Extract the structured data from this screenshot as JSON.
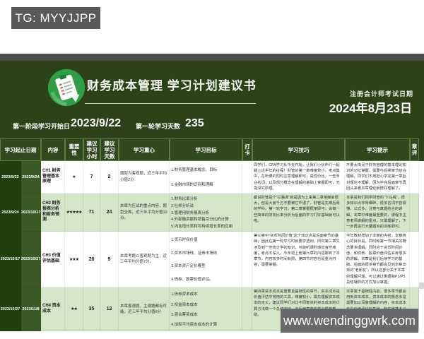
{
  "colors": {
    "page_green": "#2c4319",
    "header_cell_green": "#31491f",
    "date_col_dark": "#22400f",
    "date_col_mid": "#3c5a27",
    "row_alt_green": "#d3e6c8",
    "logo_green": "#2f9e45",
    "top_bar_gray": "#4d4d4d",
    "watermark_gray": "#69696b"
  },
  "overlays": {
    "tg_label": "TG: MYYJJPP",
    "site_label": "www.wendinggwrk.com"
  },
  "header": {
    "icon": "clipboard-icon",
    "title": "财务成本管理 学习计划建议书",
    "exam_label": "注册会计师考试日期",
    "exam_date": "2024年8月23日"
  },
  "subheader": {
    "start_label": "第一阶段学习开始日",
    "start_value": "2023/9/22",
    "days_label": "第一轮学习天数",
    "days_value": "235"
  },
  "table": {
    "headers": {
      "dates": "学习起止日期",
      "content": "内容",
      "importance": "重要性",
      "hours": "建议学习小时",
      "days": "建议学习天数",
      "focus": "学习重心",
      "goals": "学习目标",
      "check": "打卡",
      "skills": "学习技巧",
      "tips": "学习提示",
      "review": "章评"
    },
    "rows": [
      {
        "start": "2023/9/22",
        "end": "2023/9/24",
        "content": "CH1 财务管理基本原理",
        "stars": "★",
        "hours": "7",
        "days": "2",
        "focus": "题型为客观题，近三年平均分值2分",
        "goals": [
          "1.财务管理基本概念、目标",
          "2.金融市场的识别和理解"
        ],
        "check": "",
        "skills": "同学们，CPA学习从今天开始，让我们小伙伴们一起踏上这半年的征程！财管的第一章难度较小，考点集中，在听课的同时注意理解即可，高性价比。一些专业名词，以及部分概念在理解的基础上掌握即可，无需深究原理。",
        "tips": "不要太拘泥于财务管理的基本理论知识的记忆掌握，需要与后续章节结合理解。同学们不用担心学完第一章后对理论不理解，因为学完后面章节再回头来看本章理论就很好理解了。",
        "review": ""
      },
      {
        "start": "2023/9/24",
        "end": "2023/10/17",
        "content": "CH2 财务报表分析和财务预测",
        "stars": "★★★★★",
        "hours": "71",
        "days": "24",
        "focus": "本章为应试的重点内容，题型全面，近三年平均分值10分。",
        "goals": [
          "1.财务比率分析",
          "2.杜邦分析法",
          "3.管理用财务报表分析",
          "4.外部融资额和销售百分比的计算",
          "5.内含增长率和可持续增长率的应用"
        ],
        "check": "",
        "skills": "都说财管是个“拦路虎”就是因为上来第二章难度就很大，但是大家千万不要被它吓退了，财管是先难后易的学科。第一轮学习，第二章掌握框架即可，会做一些简单的财务比率分析为后面的学习打好基础就可以啦。",
        "tips": "本章是我们刚学财管的“下马威”，很多知识点非常细碎，很多名词不容易懂、公式多，注意与真题结合的讲解。本章中难度最重要的，课程中注意老师讲解的重点，只需理解了，下一步再进行大量题目的训练即可。",
        "review": ""
      },
      {
        "start": "2023/10/17",
        "end": "2023/10/27",
        "content": "CH3 价值评估基础",
        "stars": "★★★",
        "hours": "28",
        "days": "9",
        "focus": "本章考题以客观题为主，近三年平均分值7分。",
        "goals": [
          "1.货币时间价值",
          "2.资本市场线、证券市场线",
          "3.资本资产定价模型",
          "4.债券、股票价值评估。"
        ],
        "check": "",
        "skills": "第三章中“货币时间价值”这个知识点是后面章节的基础，因此在第一轮学习时就要学透彻。同时第三章又涉及到一些统计学的知识，可能听课时感觉有些难度，考点不深入。今年把上册第六章的内容挪到了本章节，内容较多时间有限，第四节内容也是重点内容，需要掌握。",
        "tips": "今年教材增加了本章的内容，本章核心的目标是，同时和第一节相关的概念要多理解，同时对于货币时间价值、和债券、股票价值评估会有很多的讲解。本章是我们后续学习的基础，后面的很多章节都会见到本章出现的“老朋友”，所以这部分关于本章的理解问题，可以通过刷题和P1/P5总结辅导的方式加以掌握。",
        "review": ""
      },
      {
        "start": "2023/10/27",
        "end": "2023/11/8",
        "content": "CH4 资本成本",
        "stars": "★★",
        "hours": "35",
        "days": "12",
        "focus": "本章客观题、主观题都有可能，近三年平均分值6分",
        "goals": [
          "1.债券资本成本",
          "2.权益资本成本",
          "3.混合筹资成本",
          "4.加权平均资本成本的计算"
        ],
        "check": "",
        "skills": "第四章资本成本是重要且基础性的章节，资本成本是价值评估中常用的工具，难度较小，需先理解资本成本的定义，建议同学们对比不同筹资的资本成本的计算方法做一个总结归纳，对后面章节的学习很有帮助。",
        "tips": "本章属于基础性内容，很多章节都会用到资本成本，资本成本的概念多是需要加以深度理解的内容，资本成本也是价值评估的基础、和估值基本公式，请不要轻视为豆腐渣工程，所以掌握好资本成本的相关概念和计算是学好后续章节的基础。",
        "review": ""
      }
    ]
  }
}
